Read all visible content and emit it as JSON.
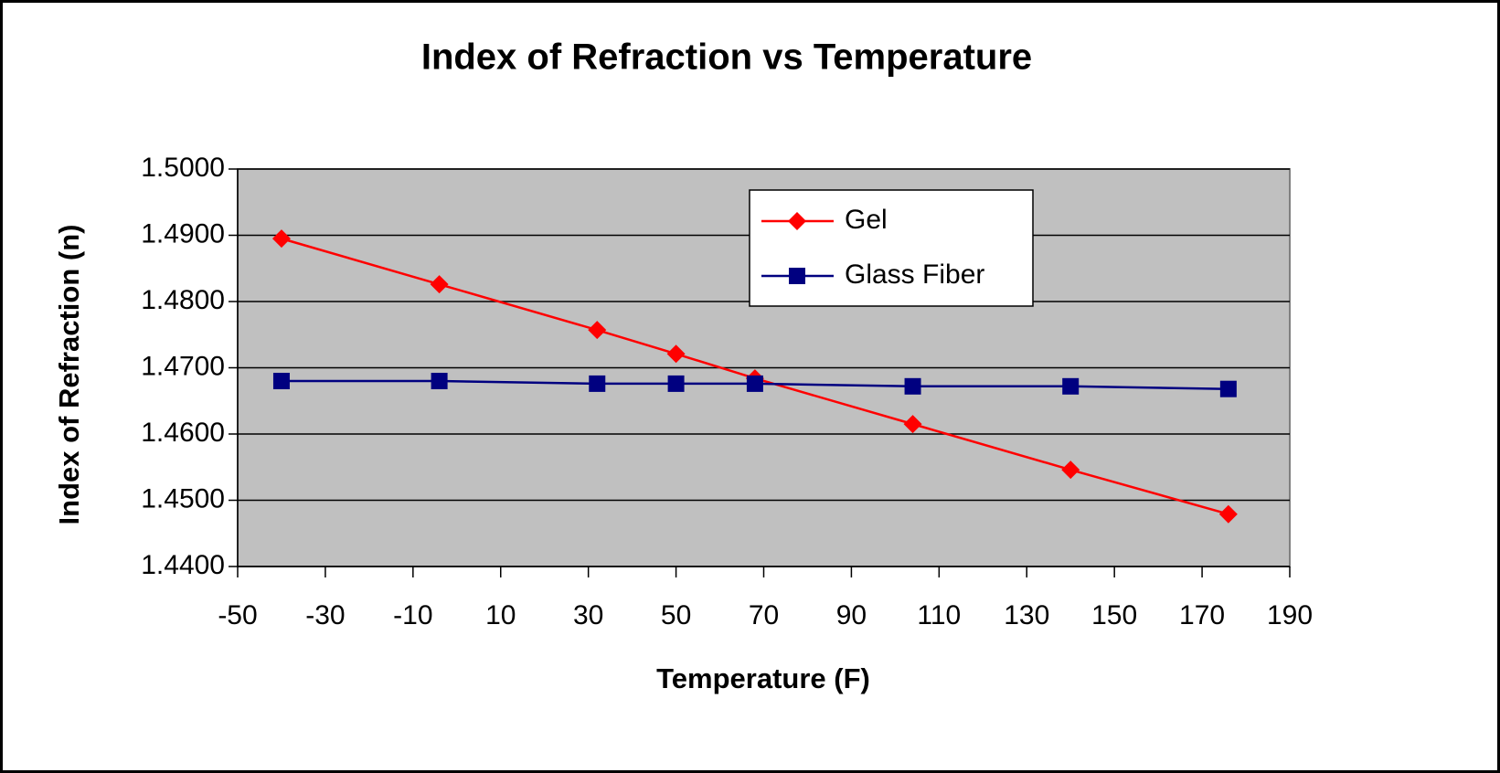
{
  "chart_data": {
    "type": "line",
    "title": "Index of Refraction vs Temperature",
    "x_label": "Temperature (F)",
    "y_label": "Index of Refraction (n)",
    "x": [
      -40,
      -4,
      32,
      50,
      68,
      104,
      140,
      176
    ],
    "series": [
      {
        "name": "Gel",
        "color": "#ff0000",
        "marker": "diamond",
        "values": [
          1.4895,
          1.4826,
          1.4757,
          1.4721,
          1.4684,
          1.4615,
          1.4546,
          1.4479
        ]
      },
      {
        "name": "Glass Fiber",
        "color": "#000080",
        "marker": "square",
        "values": [
          1.468,
          1.468,
          1.4676,
          1.4676,
          1.4676,
          1.4672,
          1.4672,
          1.4668
        ]
      }
    ],
    "xlim": [
      -50,
      190
    ],
    "xticks": [
      -50,
      -30,
      -10,
      10,
      30,
      50,
      70,
      90,
      110,
      130,
      150,
      170,
      190
    ],
    "ylim": [
      1.44,
      1.5
    ],
    "yticks": [
      {
        "value": 1.44,
        "label": "1.4400"
      },
      {
        "value": 1.45,
        "label": "1.4500"
      },
      {
        "value": 1.46,
        "label": "1.4600"
      },
      {
        "value": 1.47,
        "label": "1.4700"
      },
      {
        "value": 1.48,
        "label": "1.4800"
      },
      {
        "value": 1.49,
        "label": "1.4900"
      },
      {
        "value": 1.5,
        "label": "1.5000"
      }
    ],
    "grid": true,
    "legend": "upper right",
    "plot_background": "#c0c0c0"
  }
}
